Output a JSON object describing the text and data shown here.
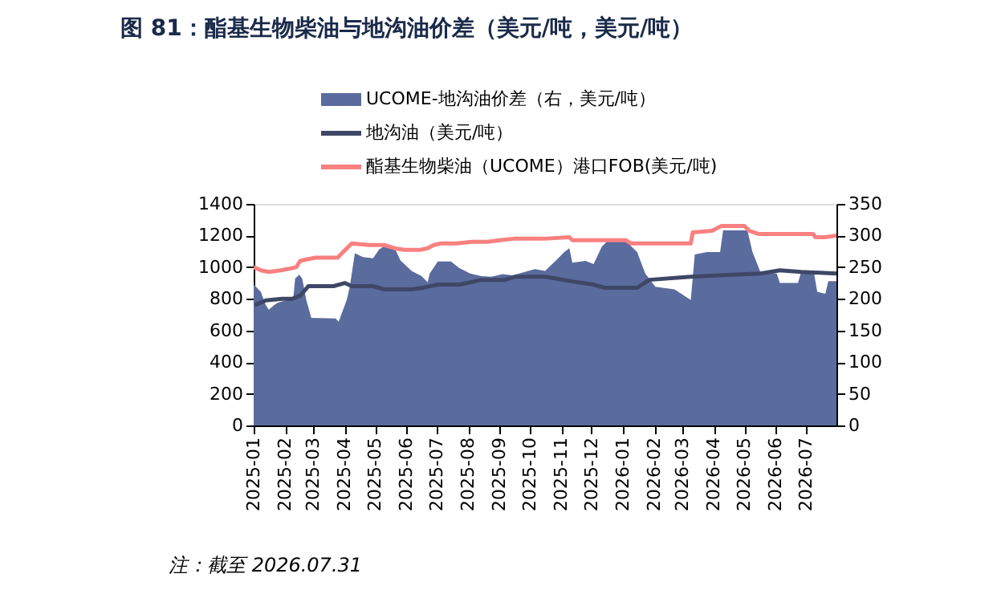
{
  "chart_data": {
    "type": "line",
    "title": "图 81：酯基生物柴油与地沟油价差（美元/吨，美元/吨）",
    "annotations": [
      "注：截至 2026.07.31"
    ],
    "xlim": [
      "2025-01-01",
      "2026-07-31"
    ],
    "xticks": [
      "2025-01",
      "2025-02",
      "2025-03",
      "2025-04",
      "2025-05",
      "2025-06",
      "2025-07",
      "2025-08",
      "2025-09",
      "2025-10",
      "2025-11",
      "2025-12",
      "2026-01",
      "2026-02",
      "2026-03",
      "2026-04",
      "2026-05",
      "2026-06",
      "2026-07"
    ],
    "ylim": [
      0,
      1400
    ],
    "yticks": [
      0,
      200,
      400,
      600,
      800,
      1000,
      1200,
      1400
    ],
    "y2lim": [
      0,
      350
    ],
    "y2ticks": [
      0,
      50,
      100,
      150,
      200,
      250,
      300,
      350
    ],
    "grid": false,
    "legend": "top",
    "series": [
      {
        "name": "UCOME-地沟油价差（右，美元/吨）",
        "type": "area",
        "axis": "y2",
        "color": "#5a6b9e",
        "x": [
          "2025-01-01",
          "2025-01-08",
          "2025-01-13",
          "2025-01-16",
          "2025-01-21",
          "2025-01-25",
          "2025-02-03",
          "2025-02-09",
          "2025-02-11",
          "2025-02-15",
          "2025-02-18",
          "2025-02-22",
          "2025-02-27",
          "2025-03-23",
          "2025-03-26",
          "2025-03-29",
          "2025-04-03",
          "2025-04-06",
          "2025-04-11",
          "2025-04-19",
          "2025-04-29",
          "2025-05-05",
          "2025-05-10",
          "2025-05-21",
          "2025-05-26",
          "2025-06-06",
          "2025-06-16",
          "2025-06-22",
          "2025-06-24",
          "2025-07-02",
          "2025-07-15",
          "2025-07-23",
          "2025-08-03",
          "2025-08-14",
          "2025-08-24",
          "2025-09-04",
          "2025-09-14",
          "2025-10-06",
          "2025-10-16",
          "2025-10-27",
          "2025-11-04",
          "2025-11-09",
          "2025-11-12",
          "2025-11-25",
          "2025-12-03",
          "2025-12-11",
          "2025-12-19",
          "2026-01-04",
          "2026-01-15",
          "2026-01-23",
          "2026-02-02",
          "2026-02-21",
          "2026-03-09",
          "2026-03-13",
          "2026-03-25",
          "2026-04-07",
          "2026-04-10",
          "2026-05-04",
          "2026-05-09",
          "2026-05-17",
          "2026-06-02",
          "2026-06-05",
          "2026-06-23",
          "2026-06-26",
          "2026-07-09",
          "2026-07-12",
          "2026-07-20",
          "2026-07-23",
          "2026-07-31"
        ],
        "values": [
          223,
          211,
          190,
          183,
          190,
          194,
          198,
          198,
          232,
          238,
          232,
          198,
          170,
          169,
          164,
          177,
          198,
          219,
          272,
          266,
          264,
          278,
          283,
          278,
          261,
          244,
          236,
          226,
          240,
          259,
          259,
          249,
          240,
          236,
          235,
          239,
          237,
          247,
          244,
          261,
          274,
          280,
          257,
          260,
          255,
          282,
          295,
          291,
          274,
          240,
          219,
          215,
          198,
          270,
          274,
          274,
          308,
          308,
          274,
          242,
          240,
          225,
          225,
          242,
          239,
          211,
          208,
          228,
          228
        ]
      },
      {
        "name": "地沟油（美元/吨）",
        "type": "line",
        "color": "#3f4766",
        "x": [
          "2025-01-02",
          "2025-01-13",
          "2025-01-29",
          "2025-02-08",
          "2025-02-16",
          "2025-02-24",
          "2025-03-05",
          "2025-03-21",
          "2025-04-01",
          "2025-04-08",
          "2025-04-29",
          "2025-05-10",
          "2025-06-06",
          "2025-06-17",
          "2025-07-02",
          "2025-07-24",
          "2025-08-14",
          "2025-09-06",
          "2025-09-17",
          "2025-10-16",
          "2025-11-12",
          "2025-12-03",
          "2025-12-14",
          "2026-01-15",
          "2026-01-27",
          "2026-03-09",
          "2026-04-10",
          "2026-05-17",
          "2026-06-05",
          "2026-06-26",
          "2026-07-31"
        ],
        "values": [
          760,
          790,
          800,
          800,
          820,
          880,
          880,
          880,
          900,
          880,
          880,
          860,
          860,
          870,
          890,
          890,
          920,
          920,
          940,
          940,
          910,
          890,
          870,
          870,
          920,
          940,
          950,
          960,
          980,
          970,
          960
        ]
      },
      {
        "name": "酯基生物柴油（UCOME）港口FOB(美元/吨)",
        "type": "line",
        "color": "#f98080",
        "x": [
          "2025-01-01",
          "2025-01-08",
          "2025-01-16",
          "2025-01-28",
          "2025-02-05",
          "2025-02-12",
          "2025-02-16",
          "2025-02-23",
          "2025-03-03",
          "2025-03-25",
          "2025-03-31",
          "2025-04-08",
          "2025-04-25",
          "2025-05-10",
          "2025-05-20",
          "2025-05-30",
          "2025-06-15",
          "2025-06-22",
          "2025-06-28",
          "2025-07-05",
          "2025-07-20",
          "2025-08-05",
          "2025-08-20",
          "2025-09-01",
          "2025-09-15",
          "2025-10-15",
          "2025-11-09",
          "2025-11-12",
          "2026-01-04",
          "2026-01-09",
          "2026-03-09",
          "2026-03-11",
          "2026-03-30",
          "2026-04-08",
          "2026-05-01",
          "2026-05-06",
          "2026-05-15",
          "2026-07-08",
          "2026-07-10",
          "2026-07-20",
          "2026-07-31"
        ],
        "values": [
          1000,
          980,
          970,
          980,
          990,
          1000,
          1040,
          1050,
          1060,
          1060,
          1100,
          1150,
          1140,
          1140,
          1120,
          1110,
          1110,
          1120,
          1140,
          1150,
          1150,
          1160,
          1160,
          1170,
          1180,
          1180,
          1190,
          1170,
          1170,
          1150,
          1150,
          1220,
          1230,
          1260,
          1260,
          1230,
          1210,
          1210,
          1190,
          1190,
          1200
        ]
      }
    ]
  }
}
